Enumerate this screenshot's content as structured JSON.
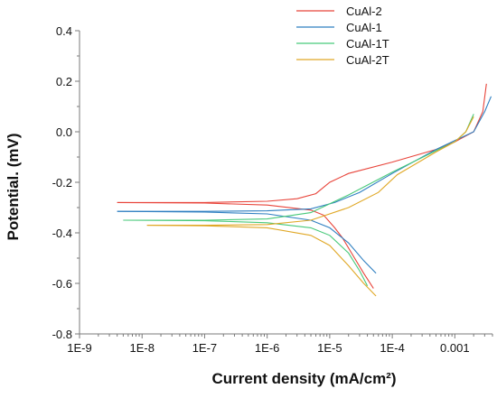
{
  "chart_data": {
    "type": "line",
    "title": "",
    "xlabel": "Current density  (mA/cm²)",
    "ylabel": "Potential. (mV)",
    "xscale": "log",
    "xlim": [
      1e-09,
      0.004
    ],
    "ylim": [
      -0.8,
      0.4
    ],
    "x_ticks": [
      1e-09,
      1e-08,
      1e-07,
      1e-06,
      1e-05,
      0.0001,
      0.001
    ],
    "x_tick_labels": [
      "1E-9",
      "1E-8",
      "1E-7",
      "1E-6",
      "1E-5",
      "1E-4",
      "0.001"
    ],
    "y_ticks": [
      -0.8,
      -0.6,
      -0.4,
      -0.2,
      0.0,
      0.2,
      0.4
    ],
    "y_tick_labels": [
      "-0.8",
      "-0.6",
      "-0.4",
      "-0.2",
      "0.0",
      "0.2",
      "0.4"
    ],
    "grid": false,
    "legend_position": "top-right",
    "series": [
      {
        "name": "CuAl-2",
        "color": "#e8443a",
        "anodic": [
          [
            4e-09,
            -0.28
          ],
          [
            1e-07,
            -0.28
          ],
          [
            1e-06,
            -0.275
          ],
          [
            3e-06,
            -0.265
          ],
          [
            6e-06,
            -0.245
          ],
          [
            1e-05,
            -0.2
          ],
          [
            2e-05,
            -0.165
          ],
          [
            0.0001,
            -0.12
          ],
          [
            0.0005,
            -0.07
          ],
          [
            0.001,
            -0.04
          ],
          [
            0.002,
            0.0
          ],
          [
            0.0028,
            0.08
          ],
          [
            0.0032,
            0.19
          ]
        ],
        "cathodic": [
          [
            4e-09,
            -0.28
          ],
          [
            1e-07,
            -0.282
          ],
          [
            1e-06,
            -0.29
          ],
          [
            5e-06,
            -0.31
          ],
          [
            8e-06,
            -0.33
          ],
          [
            1.2e-05,
            -0.38
          ],
          [
            1.6e-05,
            -0.42
          ],
          [
            2.5e-05,
            -0.5
          ],
          [
            3.5e-05,
            -0.56
          ],
          [
            5e-05,
            -0.62
          ]
        ]
      },
      {
        "name": "CuAl-1",
        "color": "#2e7fc1",
        "anodic": [
          [
            4e-09,
            -0.315
          ],
          [
            1e-07,
            -0.315
          ],
          [
            1e-06,
            -0.313
          ],
          [
            5e-06,
            -0.305
          ],
          [
            1.2e-05,
            -0.28
          ],
          [
            3e-05,
            -0.24
          ],
          [
            0.0001,
            -0.165
          ],
          [
            0.0005,
            -0.07
          ],
          [
            0.001,
            -0.035
          ],
          [
            0.002,
            0.0
          ],
          [
            0.003,
            0.08
          ],
          [
            0.0038,
            0.14
          ]
        ],
        "cathodic": [
          [
            4e-09,
            -0.315
          ],
          [
            1e-07,
            -0.318
          ],
          [
            1e-06,
            -0.325
          ],
          [
            5e-06,
            -0.35
          ],
          [
            1e-05,
            -0.38
          ],
          [
            2e-05,
            -0.44
          ],
          [
            3.5e-05,
            -0.51
          ],
          [
            5.5e-05,
            -0.56
          ]
        ]
      },
      {
        "name": "CuAl-1T",
        "color": "#48c97a",
        "anodic": [
          [
            5e-09,
            -0.35
          ],
          [
            1e-07,
            -0.35
          ],
          [
            1e-06,
            -0.345
          ],
          [
            5e-06,
            -0.32
          ],
          [
            2e-05,
            -0.25
          ],
          [
            0.0001,
            -0.16
          ],
          [
            0.0005,
            -0.075
          ],
          [
            0.001,
            -0.04
          ],
          [
            0.0015,
            0.0
          ],
          [
            0.002,
            0.07
          ]
        ],
        "cathodic": [
          [
            5e-09,
            -0.35
          ],
          [
            1e-07,
            -0.352
          ],
          [
            1e-06,
            -0.36
          ],
          [
            5e-06,
            -0.38
          ],
          [
            1e-05,
            -0.41
          ],
          [
            2e-05,
            -0.48
          ],
          [
            3e-05,
            -0.55
          ],
          [
            4e-05,
            -0.61
          ]
        ]
      },
      {
        "name": "CuAl-2T",
        "color": "#e0a826",
        "anodic": [
          [
            1.2e-08,
            -0.37
          ],
          [
            1e-07,
            -0.37
          ],
          [
            1e-06,
            -0.367
          ],
          [
            5e-06,
            -0.35
          ],
          [
            2e-05,
            -0.3
          ],
          [
            6e-05,
            -0.24
          ],
          [
            0.00012,
            -0.17
          ],
          [
            0.0005,
            -0.08
          ],
          [
            0.001,
            -0.04
          ],
          [
            0.0015,
            0.0
          ],
          [
            0.002,
            0.06
          ]
        ],
        "cathodic": [
          [
            1.2e-08,
            -0.37
          ],
          [
            1e-07,
            -0.372
          ],
          [
            1e-06,
            -0.38
          ],
          [
            5e-06,
            -0.41
          ],
          [
            1e-05,
            -0.45
          ],
          [
            2e-05,
            -0.53
          ],
          [
            3.5e-05,
            -0.6
          ],
          [
            5.5e-05,
            -0.65
          ]
        ]
      }
    ]
  }
}
